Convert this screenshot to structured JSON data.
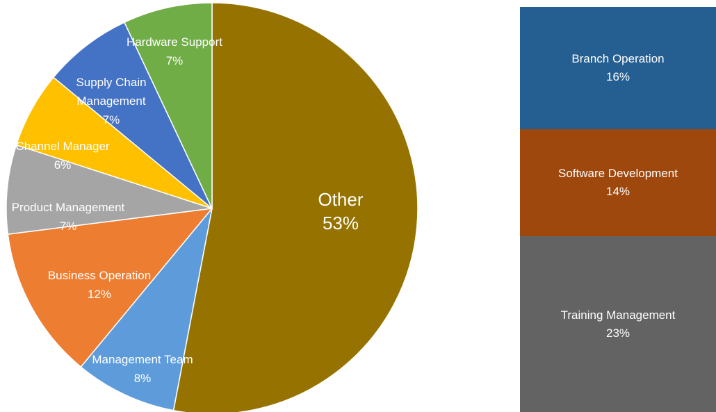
{
  "chart_data": [
    {
      "type": "pie",
      "slices": [
        {
          "label": "Other",
          "value_label": "53%",
          "value": 53,
          "color": "#967300"
        },
        {
          "label": "Management Team",
          "value_label": "8%",
          "value": 8,
          "color": "#5d9bdb"
        },
        {
          "label": "Business Operation",
          "value_label": "12%",
          "value": 12,
          "color": "#ed7d31"
        },
        {
          "label": "Product Management",
          "value_label": "7%",
          "value": 7,
          "color": "#a5a5a5"
        },
        {
          "label": "Channel Manager",
          "value_label": "6%",
          "value": 6,
          "color": "#ffc000"
        },
        {
          "label": "Supply Chain Management",
          "value_label": "7%",
          "value": 7,
          "color": "#4472c4"
        },
        {
          "label": "Hardware Support",
          "value_label": "7%",
          "value": 7,
          "color": "#70ad47"
        }
      ]
    },
    {
      "type": "bar",
      "orientation": "stacked-100",
      "categories": [
        "Branch Operation",
        "Software Development",
        "Training Management"
      ],
      "values": [
        16,
        14,
        23
      ],
      "value_labels": [
        "16%",
        "14%",
        "23%"
      ],
      "colors": [
        "#255e91",
        "#9e480e",
        "#636363"
      ]
    }
  ]
}
